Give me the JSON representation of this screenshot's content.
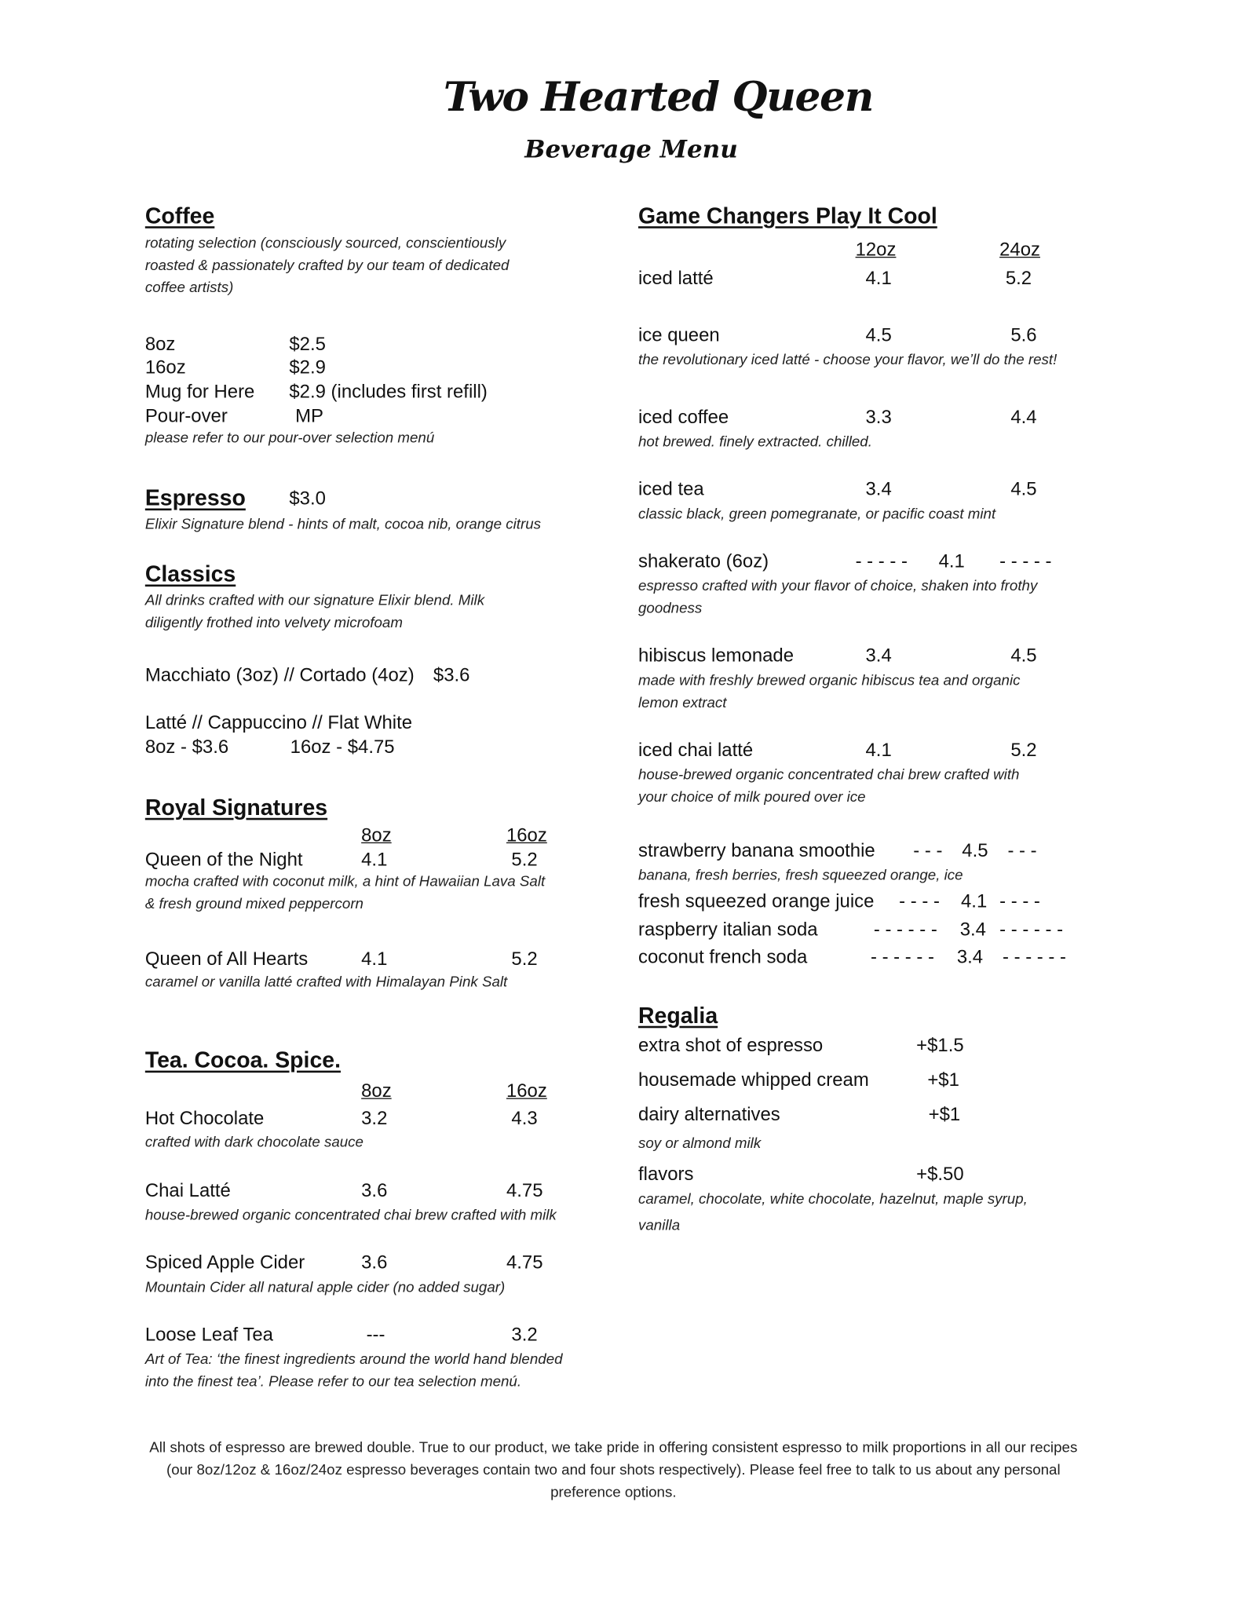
{
  "header": {
    "title": "Two Hearted Queen",
    "subtitle": "Beverage Menu"
  },
  "coffee": {
    "heading": "Coffee",
    "desc1": "rotating selection (consciously sourced, conscientiously",
    "desc2": "roasted & passionately crafted by our team of dedicated",
    "desc3": "coffee artists)",
    "items": [
      {
        "name": "8oz",
        "price": "$2.5"
      },
      {
        "name": "16oz",
        "price": "$2.9"
      },
      {
        "name": "Mug for Here",
        "price": "$2.9 (includes first refill)"
      },
      {
        "name": "Pour-over",
        "price": "MP"
      }
    ],
    "note": "please refer to our pour-over selection menú"
  },
  "espresso": {
    "heading": "Espresso",
    "price": "$3.0",
    "desc": "Elixir Signature blend - hints of malt, cocoa nib, orange citrus"
  },
  "classics": {
    "heading": "Classics",
    "desc1": "All drinks crafted with our signature Elixir blend. Milk",
    "desc2": "diligently frothed into velvety microfoam",
    "line1": "Macchiato (3oz) // Cortado (4oz)",
    "line1_price": "$3.6",
    "line2": "Latté // Cappuccino // Flat White",
    "line3a": "8oz - $3.6",
    "line3b": "16oz - $4.75"
  },
  "royal": {
    "heading": "Royal Signatures",
    "col1": "8oz",
    "col2": "16oz",
    "items": [
      {
        "name": "Queen of the Night",
        "p1": "4.1",
        "p2": "5.2",
        "desc1": "mocha crafted with coconut milk, a hint of Hawaiian Lava Salt",
        "desc2": "& fresh ground mixed peppercorn"
      },
      {
        "name": "Queen of All Hearts",
        "p1": "4.1",
        "p2": "5.2",
        "desc1": "caramel or vanilla latté crafted with Himalayan Pink Salt"
      }
    ]
  },
  "tea": {
    "heading": "Tea. Cocoa. Spice.",
    "col1": "8oz",
    "col2": "16oz",
    "items": [
      {
        "name": "Hot Chocolate",
        "p1": "3.2",
        "p2": "4.3",
        "desc1": "crafted with dark chocolate sauce"
      },
      {
        "name": "Chai Latté",
        "p1": "3.6",
        "p2": "4.75",
        "desc1": "house-brewed organic concentrated chai brew crafted with milk"
      },
      {
        "name": "Spiced Apple Cider",
        "p1": "3.6",
        "p2": "4.75",
        "desc1": "Mountain Cider all natural apple cider (no added sugar)"
      },
      {
        "name": "Loose Leaf Tea",
        "p1": "---",
        "p2": "3.2",
        "desc1": "Art of Tea: ‘the finest ingredients around the world hand blended",
        "desc2": "into the finest tea’. Please refer to our tea selection menú."
      }
    ]
  },
  "cool": {
    "heading": "Game Changers Play It Cool",
    "col1": "12oz",
    "col2": "24oz",
    "items": [
      {
        "name": "iced latté",
        "p1": "4.1",
        "p2": "5.2"
      },
      {
        "name": "ice queen",
        "p1": "4.5",
        "p2": "5.6",
        "desc1": "the revolutionary iced latté - choose your flavor, we’ll do the rest!"
      },
      {
        "name": "iced coffee",
        "p1": "3.3",
        "p2": "4.4",
        "desc1": "hot brewed. finely extracted. chilled."
      },
      {
        "name": "iced tea",
        "p1": "3.4",
        "p2": "4.5",
        "desc1": "classic black, green pomegranate, or pacific coast mint"
      },
      {
        "name": "shakerato (6oz)",
        "d1": "- - - - -",
        "p": "4.1",
        "d2": "- - - - -",
        "desc1": "espresso crafted with your flavor of choice, shaken into frothy",
        "desc2": "goodness"
      },
      {
        "name": "hibiscus lemonade",
        "p1": "3.4",
        "p2": "4.5",
        "desc1": "made with freshly brewed organic hibiscus tea and organic",
        "desc2": "lemon extract"
      },
      {
        "name": "iced chai latté",
        "p1": "4.1",
        "p2": "5.2",
        "desc1": "house-brewed organic concentrated chai brew crafted with",
        "desc2": "your choice of milk poured over ice"
      },
      {
        "name": "strawberry banana smoothie",
        "d1": "- - -",
        "p": "4.5",
        "d2": "- - -",
        "desc1": "banana, fresh berries, fresh squeezed orange, ice"
      },
      {
        "name": "fresh squeezed orange juice",
        "d1": "- - - -",
        "p": "4.1",
        "d2": "- - - -"
      },
      {
        "name": "raspberry italian soda",
        "d1": "- - - - - -",
        "p": "3.4",
        "d2": "- - - - - -"
      },
      {
        "name": "coconut french soda",
        "d1": "- - - - - -",
        "p": "3.4",
        "d2": "- - - - - -"
      }
    ]
  },
  "regalia": {
    "heading": "Regalia",
    "items": [
      {
        "name": "extra shot of espresso",
        "price": "+$1.5"
      },
      {
        "name": "housemade whipped cream",
        "price": "+$1"
      },
      {
        "name": "dairy alternatives",
        "price": "+$1",
        "desc1": "soy or almond milk"
      },
      {
        "name": "flavors",
        "price": "+$.50",
        "desc1": "caramel, chocolate, white chocolate, hazelnut, maple syrup,",
        "desc2": "vanilla"
      }
    ]
  },
  "footer": "All shots of espresso are brewed double. True to our product, we take pride in offering consistent espresso to milk proportions in all our recipes (our 8oz/12oz & 16oz/24oz espresso beverages contain two and four shots respectively). Please feel free to talk to us about any personal preference options."
}
